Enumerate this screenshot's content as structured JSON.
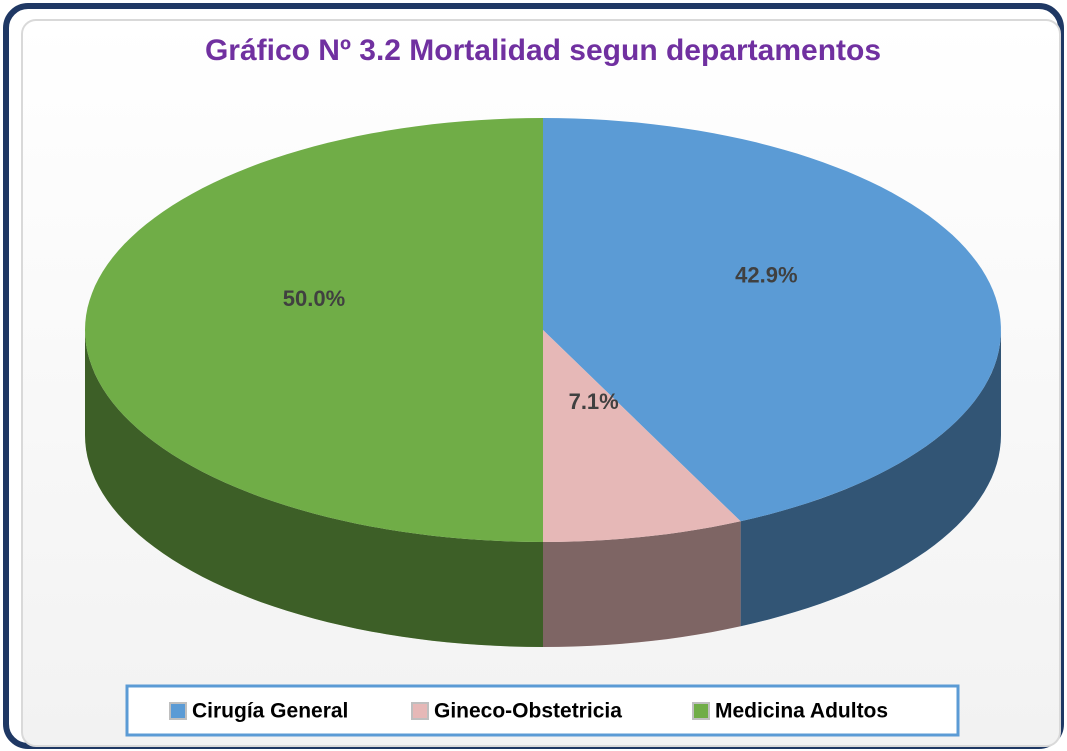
{
  "chart_data": {
    "type": "pie",
    "title": "Gráfico Nº 3.2 Mortalidad segun departamentos",
    "categories": [
      "Cirugía General",
      "Gineco-Obstetricia",
      "Medicina Adultos"
    ],
    "values": [
      42.9,
      7.1,
      50.0
    ],
    "value_labels": [
      "42.9%",
      "7.1%",
      "50.0%"
    ],
    "colors": [
      "#5b9bd5",
      "#e6b8b7",
      "#70ad47"
    ],
    "legend": "bottom"
  }
}
